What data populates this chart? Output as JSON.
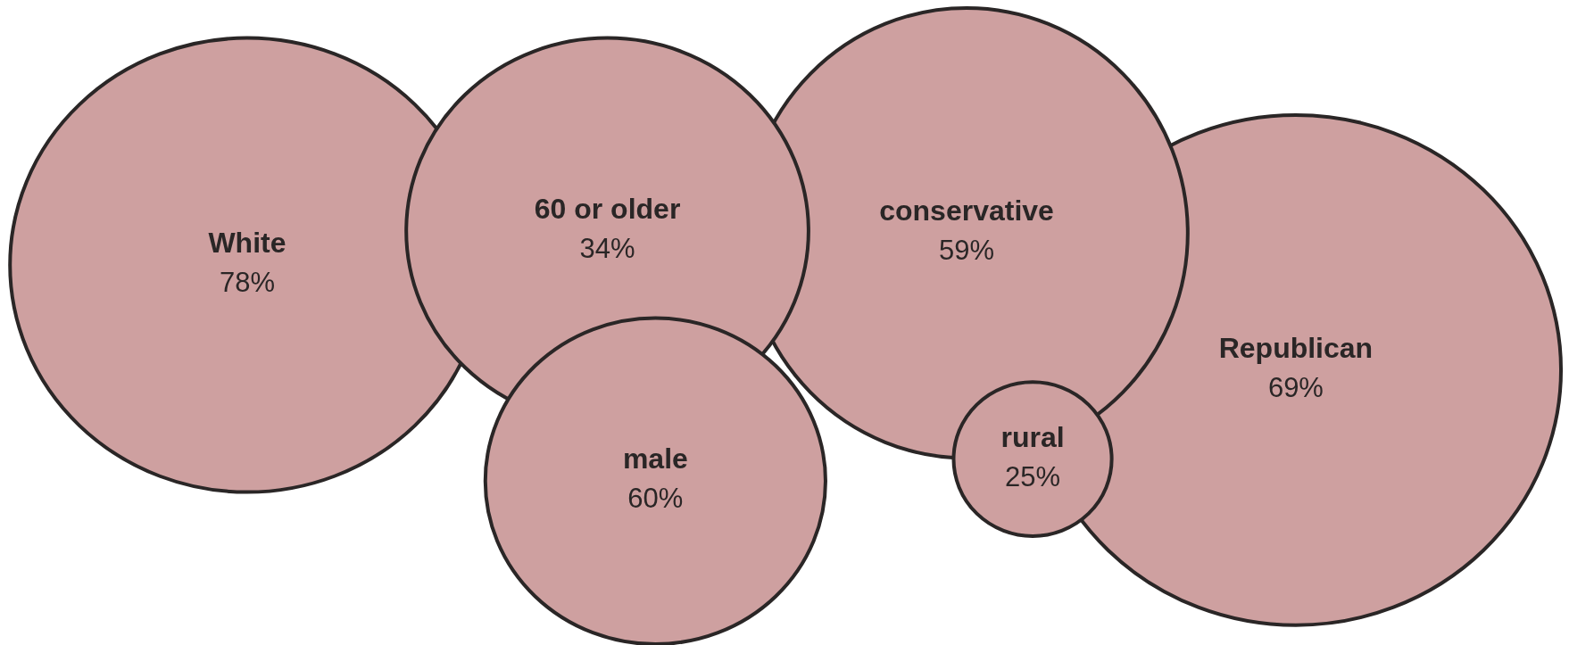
{
  "chart_data": {
    "type": "other",
    "categories": [
      "White",
      "60 or older",
      "conservative",
      "Republican",
      "male",
      "rural"
    ],
    "values": [
      78,
      34,
      59,
      69,
      60,
      25
    ],
    "value_labels": [
      "78%",
      "34%",
      "59%",
      "69%",
      "60%",
      "25%"
    ],
    "colors": [
      "#cea0a0",
      "#cea0a0",
      "#cea0a0",
      "#cea0a0",
      "#cea0a0",
      "#cea0a0"
    ]
  }
}
